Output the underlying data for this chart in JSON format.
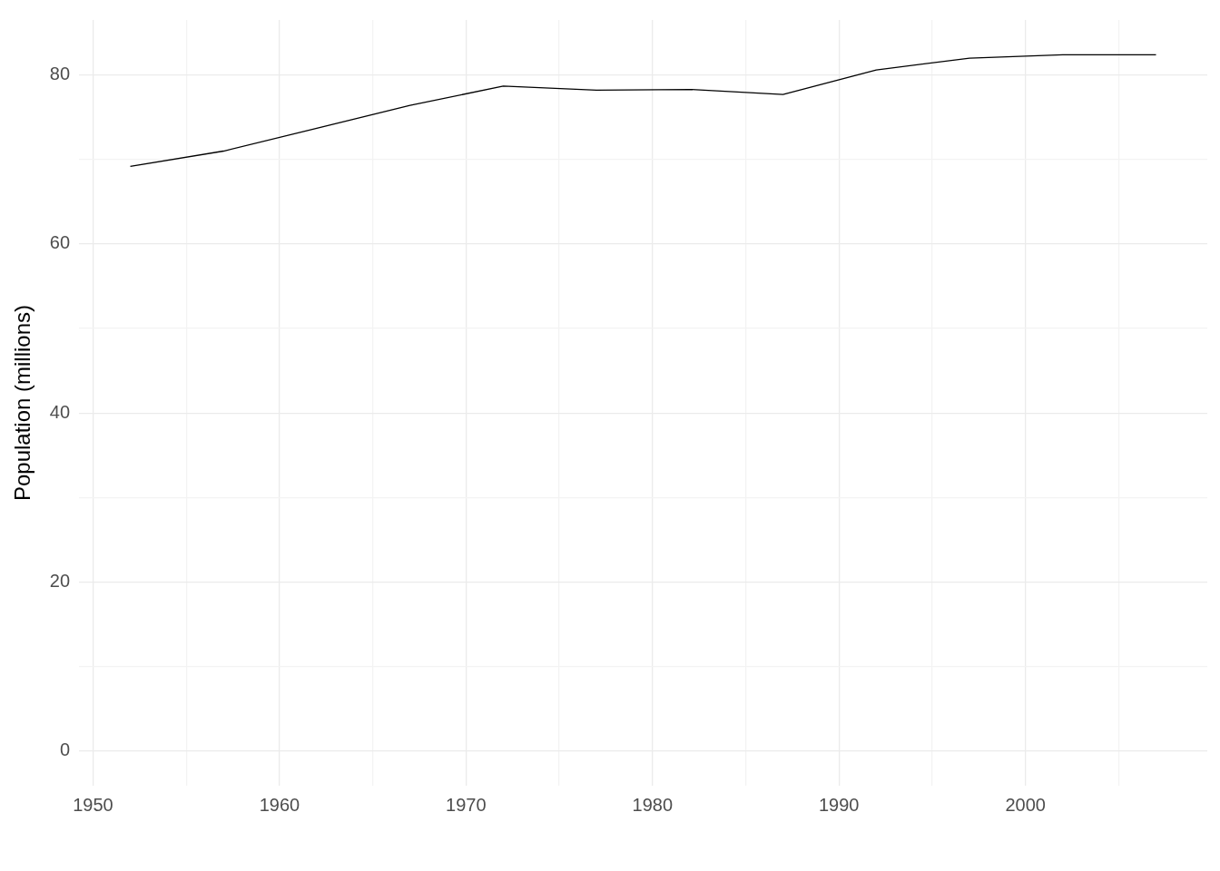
{
  "chart_data": {
    "type": "line",
    "ylabel": "Population (millions)",
    "x": [
      1952,
      1957,
      1962,
      1967,
      1972,
      1977,
      1982,
      1987,
      1992,
      1997,
      2002,
      2007
    ],
    "series": [
      {
        "color": "#000000",
        "values": [
          69.2,
          71.0,
          73.7,
          76.4,
          78.7,
          78.2,
          78.3,
          77.7,
          80.6,
          82.0,
          82.4,
          82.4
        ]
      }
    ],
    "xlim": [
      1949.25,
      2009.75
    ],
    "xticks": [
      1950,
      {
        "value": 1955,
        "label": null
      },
      1960,
      {
        "value": 1965,
        "label": null
      },
      1970,
      {
        "value": 1975,
        "label": null
      },
      1980,
      {
        "value": 1985,
        "label": null
      },
      1990,
      {
        "value": 1995,
        "label": null
      },
      2000,
      {
        "value": 2005,
        "label": null
      }
    ],
    "ylim": [
      -4.12,
      86.52
    ],
    "yticks": [
      0,
      {
        "value": 10,
        "label": null
      },
      20,
      {
        "value": 30,
        "label": null
      },
      40,
      {
        "value": 50,
        "label": null
      },
      60,
      {
        "value": 70,
        "label": null
      },
      80
    ],
    "grid": true,
    "legend": false,
    "marker": "none",
    "line_style": "solid"
  }
}
